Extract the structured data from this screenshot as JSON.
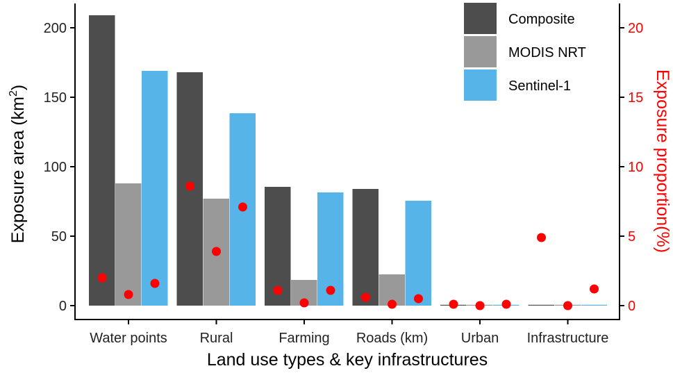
{
  "chart_data": {
    "type": "bar",
    "title": "",
    "xlabel": "Land use types & key infrastructures",
    "ylabel_left_main": "Exposure area (km",
    "ylabel_left_sup": "2",
    "ylabel_left_close": ")",
    "ylabel_right": "Exposure proportion(%)",
    "categories": [
      "Water points",
      "Rural",
      "Farming",
      "Roads (km)",
      "Urban",
      "Infrastructure"
    ],
    "ylim_left": [
      0,
      220
    ],
    "ylim_right": [
      0,
      22
    ],
    "left_ticks": [
      0,
      50,
      100,
      150,
      200
    ],
    "right_ticks": [
      0,
      5,
      10,
      15,
      20
    ],
    "legend_position": "top-right",
    "series": [
      {
        "name": "Composite",
        "color": "#4d4d4d",
        "values": [
          209,
          168,
          85.5,
          84,
          0.6,
          0.5
        ],
        "proportion": [
          2.0,
          8.6,
          1.1,
          0.6,
          0.1,
          4.9
        ]
      },
      {
        "name": "MODIS NRT",
        "color": "#999999",
        "values": [
          88,
          77,
          18.5,
          22.5,
          0.2,
          0.1
        ],
        "proportion": [
          0.8,
          3.9,
          0.2,
          0.1,
          0.0,
          0.0
        ]
      },
      {
        "name": "Sentinel-1",
        "color": "#56b4e9",
        "values": [
          169,
          138.5,
          81.5,
          75.5,
          0.3,
          0.4
        ],
        "proportion": [
          1.6,
          7.1,
          1.1,
          0.5,
          0.1,
          1.2
        ]
      }
    ],
    "point_color": "#ff0000",
    "right_axis_color": "#ff0000"
  }
}
